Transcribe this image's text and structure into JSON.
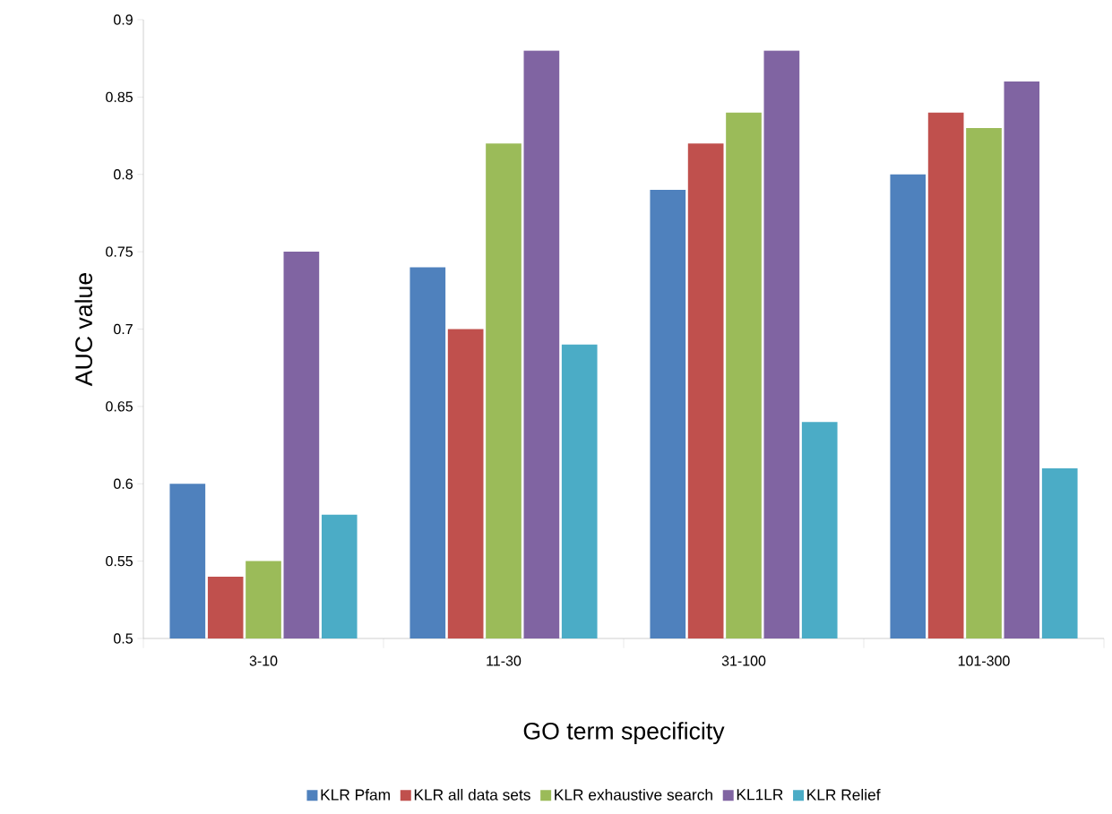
{
  "chart_data": {
    "type": "bar",
    "xlabel": "GO term specificity",
    "ylabel": "AUC value",
    "categories": [
      "3-10",
      "11-30",
      "31-100",
      "101-300"
    ],
    "series": [
      {
        "name": "KLR Pfam",
        "color": "#4f81bd",
        "values": [
          0.6,
          0.74,
          0.79,
          0.8
        ]
      },
      {
        "name": "KLR all data sets",
        "color": "#c0504d",
        "values": [
          0.54,
          0.7,
          0.82,
          0.84
        ]
      },
      {
        "name": "KLR exhaustive search",
        "color": "#9bbb59",
        "values": [
          0.55,
          0.82,
          0.84,
          0.83
        ]
      },
      {
        "name": "KL1LR",
        "color": "#8064a2",
        "values": [
          0.75,
          0.88,
          0.88,
          0.86
        ]
      },
      {
        "name": "KLR Relief",
        "color": "#4bacc6",
        "values": [
          0.58,
          0.69,
          0.64,
          0.61
        ]
      }
    ],
    "ylim": [
      0.5,
      0.9
    ],
    "yticks": [
      0.5,
      0.55,
      0.6,
      0.65,
      0.7,
      0.75,
      0.8,
      0.85,
      0.9
    ],
    "grid": false,
    "legend": "bottom"
  }
}
